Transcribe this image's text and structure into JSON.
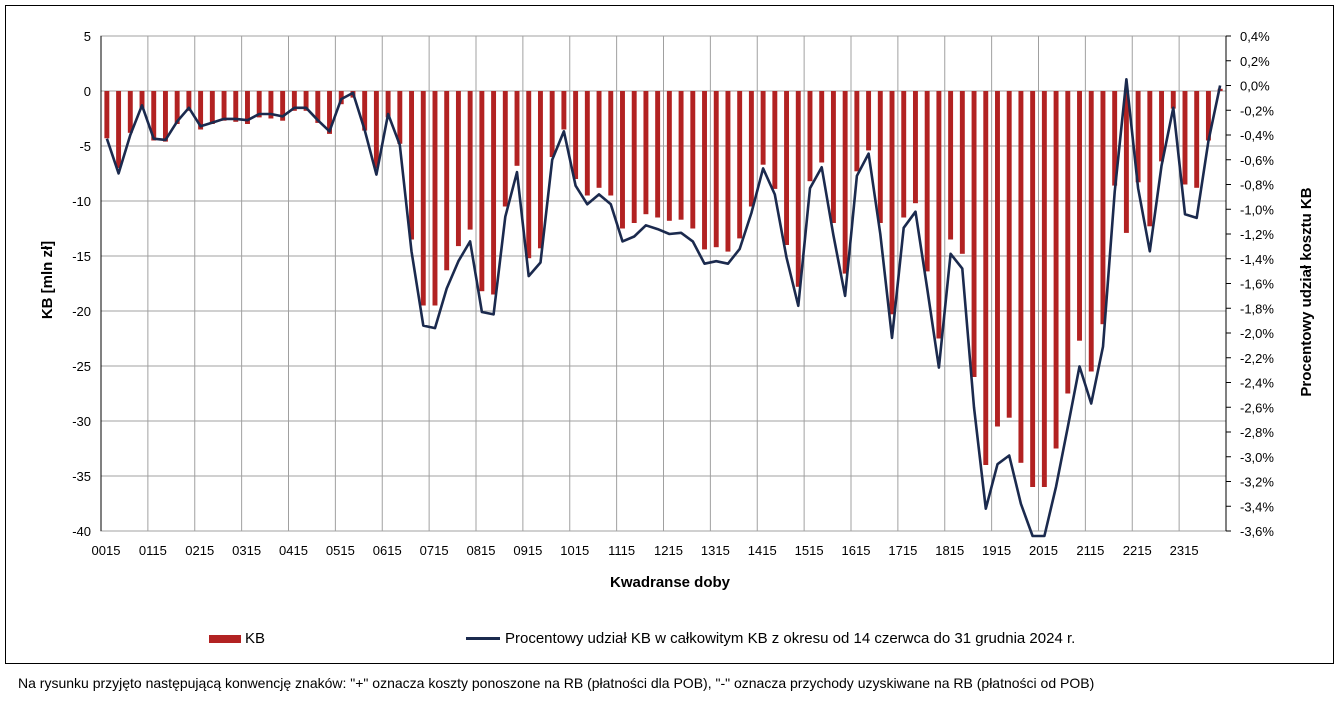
{
  "chart_data": {
    "type": "bar+line",
    "xlabel": "Kwadranse doby",
    "ylabel": "KB [mln zł]",
    "y2label": "Procentowy udział kosztu KB",
    "ylim": [
      -40,
      5
    ],
    "y2lim": [
      -3.6,
      0.4
    ],
    "yticks": [
      "5",
      "0",
      "-5",
      "-10",
      "-15",
      "-20",
      "-25",
      "-30",
      "-35",
      "-40"
    ],
    "y2ticks": [
      "0,4%",
      "0,2%",
      "0,0%",
      "-0,2%",
      "-0,4%",
      "-0,6%",
      "-0,8%",
      "-1,0%",
      "-1,2%",
      "-1,4%",
      "-1,6%",
      "-1,8%",
      "-2,0%",
      "-2,2%",
      "-2,4%",
      "-2,6%",
      "-2,8%",
      "-3,0%",
      "-3,2%",
      "-3,4%",
      "-3,6%"
    ],
    "xtick_labels": [
      "0015",
      "0115",
      "0215",
      "0315",
      "0415",
      "0515",
      "0615",
      "0715",
      "0815",
      "0915",
      "1015",
      "1115",
      "1215",
      "1315",
      "1415",
      "1515",
      "1615",
      "1715",
      "1815",
      "1915",
      "2015",
      "2115",
      "2215",
      "2315"
    ],
    "grid": true,
    "legend_position": "bottom",
    "series": [
      {
        "name": "KB",
        "kind": "bar",
        "axis": "left",
        "color": "#b22222",
        "values": [
          -4.3,
          -7.0,
          -3.8,
          -1.6,
          -4.5,
          -4.6,
          -3.0,
          -1.8,
          -3.5,
          -3.0,
          -2.7,
          -2.8,
          -3.0,
          -2.4,
          -2.5,
          -2.7,
          -1.8,
          -1.8,
          -2.9,
          -3.9,
          -1.2,
          -0.6,
          -3.6,
          -7.0,
          -2.4,
          -4.8,
          -13.5,
          -19.5,
          -19.5,
          -16.3,
          -14.1,
          -12.6,
          -18.2,
          -18.5,
          -10.5,
          -6.8,
          -15.2,
          -14.3,
          -6.0,
          -3.5,
          -8.0,
          -9.5,
          -8.8,
          -9.5,
          -12.5,
          -12.0,
          -11.2,
          -11.5,
          -11.8,
          -11.7,
          -12.5,
          -14.4,
          -14.2,
          -14.6,
          -13.4,
          -10.5,
          -6.7,
          -8.9,
          -14.0,
          -17.8,
          -8.2,
          -6.5,
          -12.0,
          -16.6,
          -7.3,
          -5.4,
          -12.0,
          -20.3,
          -11.5,
          -10.2,
          -16.4,
          -22.5,
          -13.5,
          -14.8,
          -26.0,
          -34.0,
          -30.5,
          -29.7,
          -33.8,
          -36.0,
          -36.0,
          -32.5,
          -27.5,
          -22.7,
          -25.5,
          -21.2,
          -8.6,
          -12.9,
          -8.3,
          -12.3,
          -6.4,
          -1.6,
          -8.5,
          -8.8,
          -4.5,
          0.2
        ]
      },
      {
        "name": "Procentowy udział KB w całkowitym KB z okresu od 14 czerwca do 31 grudnia 2024 r.",
        "kind": "line",
        "axis": "right",
        "color": "#1b2a4e",
        "values": [
          -0.43,
          -0.71,
          -0.4,
          -0.16,
          -0.43,
          -0.44,
          -0.29,
          -0.18,
          -0.33,
          -0.3,
          -0.27,
          -0.27,
          -0.28,
          -0.23,
          -0.23,
          -0.25,
          -0.18,
          -0.18,
          -0.28,
          -0.37,
          -0.11,
          -0.06,
          -0.36,
          -0.72,
          -0.23,
          -0.48,
          -1.34,
          -1.94,
          -1.96,
          -1.64,
          -1.42,
          -1.26,
          -1.83,
          -1.85,
          -1.06,
          -0.7,
          -1.54,
          -1.43,
          -0.6,
          -0.37,
          -0.81,
          -0.96,
          -0.88,
          -0.96,
          -1.26,
          -1.22,
          -1.13,
          -1.16,
          -1.2,
          -1.19,
          -1.26,
          -1.44,
          -1.42,
          -1.44,
          -1.32,
          -1.03,
          -0.67,
          -0.88,
          -1.39,
          -1.78,
          -0.83,
          -0.66,
          -1.21,
          -1.7,
          -0.73,
          -0.55,
          -1.2,
          -2.04,
          -1.15,
          -1.02,
          -1.64,
          -2.28,
          -1.36,
          -1.48,
          -2.6,
          -3.42,
          -3.06,
          -2.99,
          -3.38,
          -3.64,
          -3.64,
          -3.24,
          -2.76,
          -2.27,
          -2.57,
          -2.11,
          -0.86,
          0.05,
          -0.83,
          -1.34,
          -0.65,
          -0.18,
          -1.04,
          -1.07,
          -0.45,
          0.0
        ]
      }
    ]
  },
  "legend": {
    "bar_label": "KB",
    "line_label": "Procentowy udział KB w całkowitym KB z okresu od 14 czerwca do 31 grudnia 2024 r."
  },
  "footnote": "Na rysunku przyjęto następującą konwencję znaków: \"+\" oznacza koszty ponoszone na RB (płatności dla POB), \"-\" oznacza przychody uzyskiwane na RB (płatności od POB)"
}
